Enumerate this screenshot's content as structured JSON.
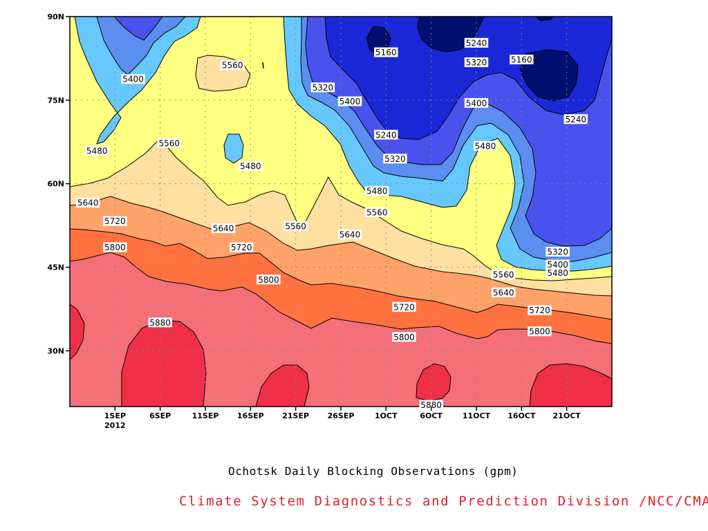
{
  "chart_data": {
    "type": "contour",
    "title": "Ochotsk Daily Blocking Observations (gpm)",
    "xlabel": "",
    "ylabel": "",
    "x_ticks": [
      "1SEP",
      "6SEP",
      "11SEP",
      "16SEP",
      "21SEP",
      "26SEP",
      "1OCT",
      "6OCT",
      "11OCT",
      "16OCT",
      "21OCT"
    ],
    "x_tick_labels": [
      "1SEP",
      "6SEP",
      "11SEP",
      "16SEP",
      "21SEP",
      "26SEP",
      "1OCT",
      "6OCT",
      "11OCT",
      "16OCT",
      "21OCT"
    ],
    "x_year_label": "2012",
    "x_range": [
      "2012-08-27",
      "2012-10-26"
    ],
    "y_ticks": [
      30,
      45,
      60,
      75,
      90
    ],
    "y_tick_labels": [
      "30N",
      "45N",
      "60N",
      "75N",
      "90N"
    ],
    "y_range": [
      20,
      90
    ],
    "grid": true,
    "contour_levels": [
      5160,
      5240,
      5320,
      5400,
      5480,
      5560,
      5640,
      5720,
      5800,
      5880
    ],
    "contour_labels": [
      {
        "text": "5160",
        "date": "2012-10-01",
        "lat": 83.6
      },
      {
        "text": "5240",
        "date": "2012-10-11",
        "lat": 85.3
      },
      {
        "text": "5160",
        "date": "2012-10-16",
        "lat": 82.3
      },
      {
        "text": "5320",
        "date": "2012-10-11",
        "lat": 81.8
      },
      {
        "text": "5320",
        "date": "2012-09-24",
        "lat": 77.3
      },
      {
        "text": "5400",
        "date": "2012-09-03",
        "lat": 78.8
      },
      {
        "text": "5560",
        "date": "2012-09-14",
        "lat": 81.3
      },
      {
        "text": "5400",
        "date": "2012-09-27",
        "lat": 74.8
      },
      {
        "text": "5400",
        "date": "2012-10-11",
        "lat": 74.5
      },
      {
        "text": "5240",
        "date": "2012-10-01",
        "lat": 68.8
      },
      {
        "text": "5240",
        "date": "2012-10-22",
        "lat": 71.6
      },
      {
        "text": "5480",
        "date": "2012-08-30",
        "lat": 65.9
      },
      {
        "text": "5560",
        "date": "2012-09-07",
        "lat": 67.3
      },
      {
        "text": "5480",
        "date": "2012-09-16",
        "lat": 63.2
      },
      {
        "text": "5320",
        "date": "2012-10-02",
        "lat": 64.5
      },
      {
        "text": "5480",
        "date": "2012-10-12",
        "lat": 66.8
      },
      {
        "text": "5480",
        "date": "2012-09-30",
        "lat": 58.7
      },
      {
        "text": "5640",
        "date": "2012-08-29",
        "lat": 56.6
      },
      {
        "text": "5560",
        "date": "2012-09-30",
        "lat": 54.9
      },
      {
        "text": "5720",
        "date": "2012-09-01",
        "lat": 53.3
      },
      {
        "text": "5640",
        "date": "2012-09-13",
        "lat": 52.0
      },
      {
        "text": "5560",
        "date": "2012-09-21",
        "lat": 52.4
      },
      {
        "text": "5640",
        "date": "2012-09-27",
        "lat": 50.9
      },
      {
        "text": "5800",
        "date": "2012-09-01",
        "lat": 48.6
      },
      {
        "text": "5720",
        "date": "2012-09-15",
        "lat": 48.6
      },
      {
        "text": "5320",
        "date": "2012-10-20",
        "lat": 47.8
      },
      {
        "text": "5400",
        "date": "2012-10-20",
        "lat": 45.5
      },
      {
        "text": "5480",
        "date": "2012-10-20",
        "lat": 44.0
      },
      {
        "text": "5560",
        "date": "2012-10-14",
        "lat": 43.7
      },
      {
        "text": "5800",
        "date": "2012-09-18",
        "lat": 42.8
      },
      {
        "text": "5640",
        "date": "2012-10-14",
        "lat": 40.5
      },
      {
        "text": "5720",
        "date": "2012-10-03",
        "lat": 37.9
      },
      {
        "text": "5720",
        "date": "2012-10-18",
        "lat": 37.3
      },
      {
        "text": "5880",
        "date": "2012-09-06",
        "lat": 35.1
      },
      {
        "text": "5800",
        "date": "2012-10-18",
        "lat": 33.5
      },
      {
        "text": "5800",
        "date": "2012-10-03",
        "lat": 32.5
      },
      {
        "text": "5880",
        "date": "2012-10-06",
        "lat": 20.3
      }
    ]
  },
  "captions": {
    "main": "Ochotsk Daily Blocking Observations (gpm)",
    "credit": "Climate System Diagnostics and Prediction Division /NCC/CMA"
  },
  "colors": {
    "level_below_5160": "#001070",
    "level_5160_5240": "#1a28d8",
    "level_5240_5320": "#4a52ee",
    "level_5320_5400": "#5b8ef0",
    "level_5400_5480": "#66c8ff",
    "level_5480_5560": "#ffff80",
    "level_5560_5640": "#ffe0a0",
    "level_5640_5720": "#ffa26a",
    "level_5720_5800": "#ff7240",
    "level_5800_5880": "#f46f78",
    "level_above_5880": "#f03046",
    "credit_text": "#e0202a"
  }
}
